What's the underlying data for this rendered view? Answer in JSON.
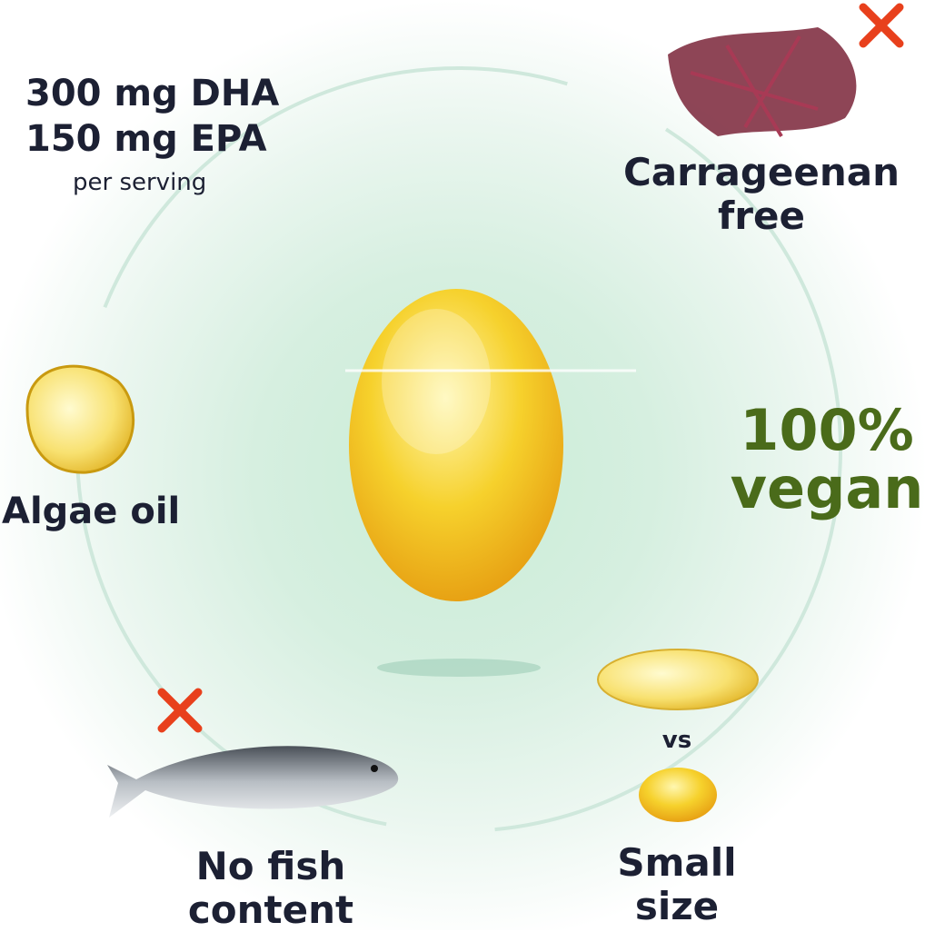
{
  "stats": {
    "dha": "300 mg DHA",
    "epa": "150 mg EPA",
    "per": "per serving"
  },
  "features": {
    "carrageenan": [
      "Carrageenan",
      "free"
    ],
    "vegan": [
      "100%",
      "vegan"
    ],
    "algae": "Algae oil",
    "fish": [
      "No fish",
      "content"
    ],
    "vs": "vs",
    "size": [
      "Small",
      "size"
    ]
  },
  "icons": [
    "capsule-icon",
    "seaweed-image",
    "fish-image",
    "cross-icon",
    "algae-drop-image"
  ],
  "colors": {
    "text": "#1c2033",
    "vegan": "#4a6b1a",
    "cross": "#e8401c",
    "ring": "#cfe8dc"
  }
}
